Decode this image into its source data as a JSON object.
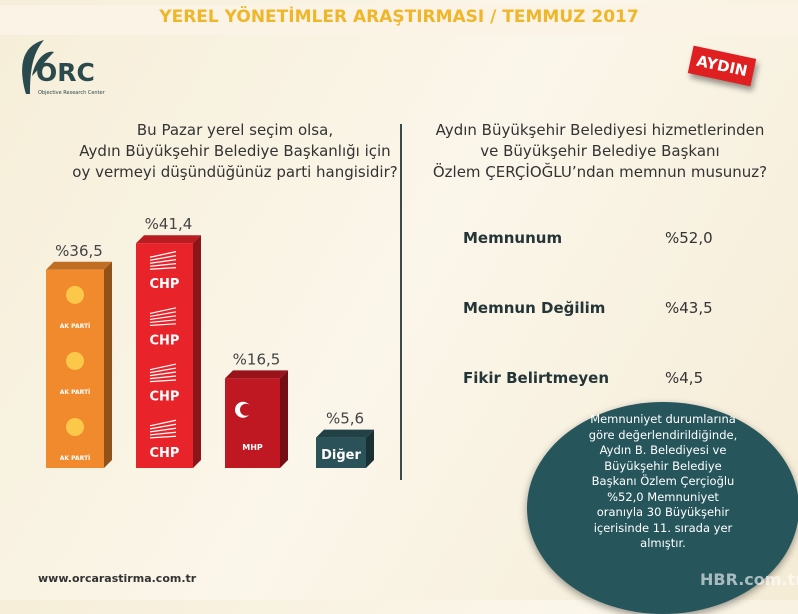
{
  "header": {
    "title": "YEREL YÖNETİMLER ARAŞTIRMASI / TEMMUZ 2017",
    "city_badge": "AYDIN"
  },
  "logo": {
    "name": "ORC",
    "subtitle": "Objective Research Center"
  },
  "left_question": [
    "Bu Pazar yerel seçim olsa,",
    "Aydın Büyükşehir Belediye Başkanlığı için",
    "oy vermeyi düşündüğünüz parti hangisidir?"
  ],
  "right_question": [
    "Aydın Büyükşehir Belediyesi hizmetlerinden",
    "ve Büyükşehir Belediye Başkanı",
    "Özlem ÇERÇİOĞLU’ndan memnun musunuz?"
  ],
  "chart_data": {
    "type": "bar",
    "categories": [
      "AK PARTİ",
      "CHP",
      "MHP",
      "Diğer"
    ],
    "values": [
      36.5,
      41.4,
      16.5,
      5.6
    ],
    "labels": [
      "%36,5",
      "%41,4",
      "%16,5",
      "%5,6"
    ],
    "colors": [
      "#f08a2c",
      "#e8242a",
      "#c01822",
      "#2b5258"
    ],
    "bar_logo_text": [
      "AK PARTİ",
      "CHP",
      "MHP",
      "Diğer"
    ],
    "ylim": [
      0,
      45
    ]
  },
  "satisfaction": [
    {
      "label": "Memnunum",
      "value": "%52,0"
    },
    {
      "label": "Memnun Değilim",
      "value": "%43,5"
    },
    {
      "label": "Fikir Belirtmeyen",
      "value": "%4,5"
    }
  ],
  "bubble": {
    "text": "Memnuniyet durumlarına göre değerlendirildiğinde, Aydın B. Belediyesi ve Büyükşehir Belediye Başkanı Özlem Çerçioğlu %52,0 Memnuniyet oranıyla 30 Büyükşehir içerisinde 11. sırada yer almıştır."
  },
  "footer": {
    "url": "www.orcarastirma.com.tr",
    "watermark": "HBR.com.tr"
  }
}
